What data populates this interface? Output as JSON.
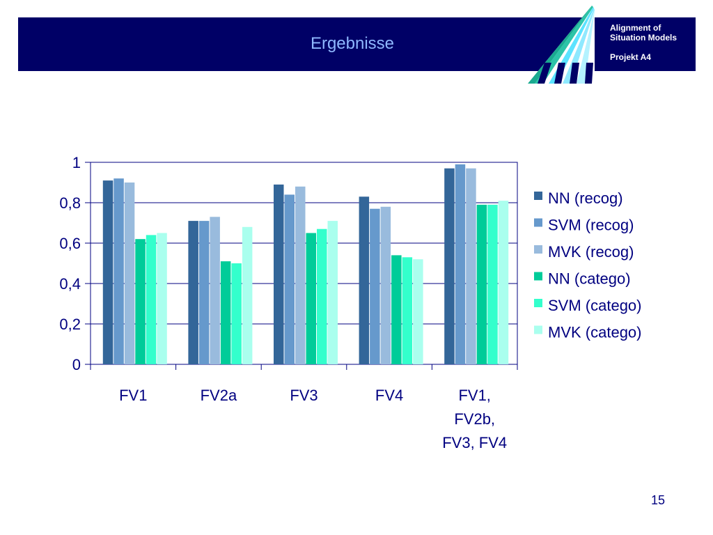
{
  "header": {
    "title": "Ergebnisse",
    "brand_line1": "Alignment of",
    "brand_line2": "Situation Models",
    "project": "Projekt A4",
    "bar_color": "#000066"
  },
  "page_number": "15",
  "chart_data": {
    "type": "bar",
    "categories": [
      [
        "FV1"
      ],
      [
        "FV2a"
      ],
      [
        "FV3"
      ],
      [
        "FV4"
      ],
      [
        "FV1,",
        "FV2b,",
        "FV3, FV4"
      ]
    ],
    "series": [
      {
        "name": "NN (recog)",
        "color": "#336699",
        "values": [
          0.91,
          0.71,
          0.89,
          0.83,
          0.97
        ]
      },
      {
        "name": "SVM (recog)",
        "color": "#6699cc",
        "values": [
          0.92,
          0.71,
          0.84,
          0.77,
          0.99
        ]
      },
      {
        "name": "MVK (recog)",
        "color": "#99bbdd",
        "values": [
          0.9,
          0.73,
          0.88,
          0.78,
          0.97
        ]
      },
      {
        "name": "NN (catego)",
        "color": "#00cc99",
        "values": [
          0.62,
          0.51,
          0.65,
          0.54,
          0.79
        ]
      },
      {
        "name": "SVM (catego)",
        "color": "#33ffcc",
        "values": [
          0.64,
          0.5,
          0.67,
          0.53,
          0.79
        ]
      },
      {
        "name": "MVK (catego)",
        "color": "#aaffee",
        "values": [
          0.65,
          0.68,
          0.71,
          0.52,
          0.81
        ]
      }
    ],
    "ylim": [
      0,
      1
    ],
    "yticks": [
      0,
      0.2,
      0.4,
      0.6,
      0.8,
      1
    ],
    "ytick_labels": [
      "0",
      "0,2",
      "0,4",
      "0,6",
      "0,8",
      "1"
    ],
    "grid": true,
    "legend": "right",
    "xlabel": "",
    "ylabel": ""
  }
}
